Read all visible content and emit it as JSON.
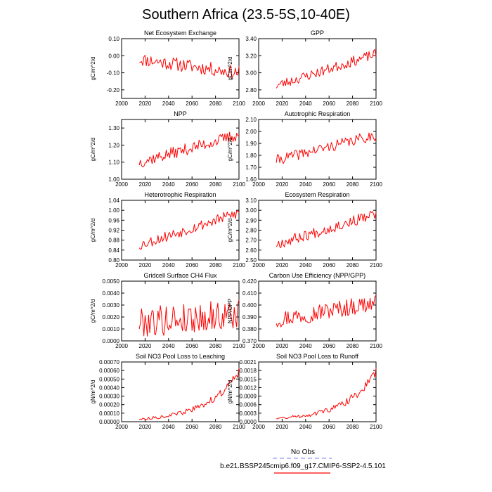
{
  "figure_title": "Southern Africa (23.5-5S,10-40E)",
  "legend": {
    "obs_label": "No Obs",
    "obs_color": "#9999ff",
    "model_label": "b.e21.BSSP245cmip6.f09_g17.CMIP6-SSP2-4.5.101",
    "model_color": "#ff0000"
  },
  "chart_data": [
    {
      "type": "line",
      "title": "Net Ecosystem Exchange",
      "ylabel": "gC/m^2/d",
      "xlim": [
        2000,
        2100
      ],
      "ylim": [
        -0.25,
        0.1
      ],
      "xticks": [
        "2000",
        "2020",
        "2040",
        "2060",
        "2080",
        "2100"
      ],
      "yticks": [
        "0.10",
        "0.00",
        "-0.10",
        "-0.20"
      ],
      "ytick_values": [
        0.1,
        0.0,
        -0.1,
        -0.2
      ],
      "x_start": 2015,
      "x_end": 2100,
      "y_start": -0.02,
      "y_end": -0.1,
      "noise": 0.04,
      "seed": 11,
      "y_min": -0.22,
      "y_max": 0.08
    },
    {
      "type": "line",
      "title": "GPP",
      "ylabel": "gC/m^2/d",
      "xlim": [
        2000,
        2100
      ],
      "ylim": [
        2.7,
        3.4
      ],
      "xticks": [
        "2000",
        "2020",
        "2040",
        "2060",
        "2080",
        "2100"
      ],
      "yticks": [
        "3.40",
        "3.20",
        "3.00",
        "2.80"
      ],
      "ytick_values": [
        3.4,
        3.2,
        3.0,
        2.8
      ],
      "x_start": 2015,
      "x_end": 2100,
      "y_start": 2.85,
      "y_end": 3.22,
      "noise": 0.06,
      "seed": 23,
      "y_min": 2.75,
      "y_max": 3.33
    },
    {
      "type": "line",
      "title": "NPP",
      "ylabel": "gC/m^2/d",
      "xlim": [
        2000,
        2100
      ],
      "ylim": [
        1.0,
        1.35
      ],
      "xticks": [
        "2000",
        "2020",
        "2040",
        "2060",
        "2080",
        "2100"
      ],
      "yticks": [
        "1.30",
        "1.20",
        "1.10",
        "1.00"
      ],
      "ytick_values": [
        1.3,
        1.2,
        1.1,
        1.0
      ],
      "x_start": 2015,
      "x_end": 2100,
      "y_start": 1.1,
      "y_end": 1.26,
      "noise": 0.035,
      "seed": 37,
      "y_min": 1.04,
      "y_max": 1.32
    },
    {
      "type": "line",
      "title": "Autotrophic Respiration",
      "ylabel": "gC/m^2/d",
      "xlim": [
        2000,
        2100
      ],
      "ylim": [
        1.6,
        2.1
      ],
      "xticks": [
        "2000",
        "2020",
        "2040",
        "2060",
        "2080",
        "2100"
      ],
      "yticks": [
        "2.10",
        "2.00",
        "1.90",
        "1.80",
        "1.70",
        "1.60"
      ],
      "ytick_values": [
        2.1,
        2.0,
        1.9,
        1.8,
        1.7,
        1.6
      ],
      "x_start": 2015,
      "x_end": 2100,
      "y_start": 1.76,
      "y_end": 1.97,
      "noise": 0.045,
      "seed": 41,
      "y_min": 1.7,
      "y_max": 2.03
    },
    {
      "type": "line",
      "title": "Heterotrophic Respiration",
      "ylabel": "gC/m^2/d",
      "xlim": [
        2000,
        2100
      ],
      "ylim": [
        0.8,
        1.04
      ],
      "xticks": [
        "2000",
        "2020",
        "2040",
        "2060",
        "2080",
        "2100"
      ],
      "yticks": [
        "1.04",
        "1.00",
        "0.96",
        "0.92",
        "0.88",
        "0.84",
        "0.80"
      ],
      "ytick_values": [
        1.04,
        1.0,
        0.96,
        0.92,
        0.88,
        0.84,
        0.8
      ],
      "x_start": 2015,
      "x_end": 2100,
      "y_start": 0.86,
      "y_end": 0.99,
      "noise": 0.022,
      "seed": 53,
      "y_min": 0.835,
      "y_max": 1.03
    },
    {
      "type": "line",
      "title": "Ecosystem Respiration",
      "ylabel": "gC/m^2/d",
      "xlim": [
        2000,
        2100
      ],
      "ylim": [
        2.5,
        3.1
      ],
      "xticks": [
        "2000",
        "2020",
        "2040",
        "2060",
        "2080",
        "2100"
      ],
      "yticks": [
        "3.10",
        "3.00",
        "2.90",
        "2.80",
        "2.70",
        "2.60",
        "2.50"
      ],
      "ytick_values": [
        3.1,
        3.0,
        2.9,
        2.8,
        2.7,
        2.6,
        2.5
      ],
      "x_start": 2015,
      "x_end": 2100,
      "y_start": 2.66,
      "y_end": 2.96,
      "noise": 0.055,
      "seed": 67,
      "y_min": 2.55,
      "y_max": 3.05
    },
    {
      "type": "line",
      "title": "Gridcell Surface CH4 Flux",
      "ylabel": "gC/m^2/d",
      "xlim": [
        2000,
        2100
      ],
      "ylim": [
        0.0,
        0.005
      ],
      "xticks": [
        "2000",
        "2020",
        "2040",
        "2060",
        "2080",
        "2100"
      ],
      "yticks": [
        "0.0050",
        "0.0040",
        "0.0030",
        "0.0020",
        "0.0010",
        "0.0000"
      ],
      "ytick_values": [
        0.005,
        0.004,
        0.003,
        0.002,
        0.001,
        0.0
      ],
      "x_start": 2015,
      "x_end": 2100,
      "y_start": 0.0016,
      "y_end": 0.0022,
      "noise": 0.0013,
      "seed": 79,
      "y_min": 0.0003,
      "y_max": 0.0049
    },
    {
      "type": "line",
      "title": "Carbon Use Efficiency (NPP/GPP)",
      "ylabel": "NPP/GPP",
      "xlim": [
        2000,
        2100
      ],
      "ylim": [
        0.37,
        0.42
      ],
      "xticks": [
        "2000",
        "2020",
        "2040",
        "2060",
        "2080",
        "2100"
      ],
      "yticks": [
        "0.420",
        "0.410",
        "0.400",
        "0.390",
        "0.380",
        "0.370"
      ],
      "ytick_values": [
        0.42,
        0.41,
        0.4,
        0.39,
        0.38,
        0.37
      ],
      "x_start": 2015,
      "x_end": 2100,
      "y_start": 0.388,
      "y_end": 0.402,
      "noise": 0.0075,
      "seed": 97,
      "y_min": 0.374,
      "y_max": 0.418
    },
    {
      "type": "line",
      "title": "Soil NO3 Pool Loss to Leaching",
      "ylabel": "gN/m^2/d",
      "xlim": [
        2000,
        2100
      ],
      "ylim": [
        0.0,
        0.0007
      ],
      "xticks": [
        "2000",
        "2020",
        "2040",
        "2060",
        "2080",
        "2100"
      ],
      "yticks": [
        "0.00070",
        "0.00060",
        "0.00050",
        "0.00040",
        "0.00030",
        "0.00020",
        "0.00010",
        "0.00000"
      ],
      "ytick_values": [
        0.0007,
        0.0006,
        0.0005,
        0.0004,
        0.0003,
        0.0002,
        0.0001,
        0.0
      ],
      "x_start": 2015,
      "x_end": 2100,
      "y_start": 3e-05,
      "y_end": 0.00058,
      "noise": 2.5e-05,
      "seed": 113,
      "growth": 3.0,
      "y_min": 2e-05,
      "y_max": 0.00063
    },
    {
      "type": "line",
      "title": "Soil NO3 Pool Loss to Runoff",
      "ylabel": "gN/m^2/d",
      "xlim": [
        2000,
        2100
      ],
      "ylim": [
        0.0,
        0.0021
      ],
      "xticks": [
        "2000",
        "2020",
        "2040",
        "2060",
        "2080",
        "2100"
      ],
      "yticks": [
        "0.0021",
        "0.0018",
        "0.0015",
        "0.0012",
        "0.0009",
        "0.0006",
        "0.0003",
        "0.0000"
      ],
      "ytick_values": [
        0.0021,
        0.0018,
        0.0015,
        0.0012,
        0.0009,
        0.0006,
        0.0003,
        0.0
      ],
      "x_start": 2015,
      "x_end": 2100,
      "y_start": 0.00012,
      "y_end": 0.00175,
      "noise": 8e-05,
      "seed": 131,
      "growth": 3.2,
      "y_min": 0.0001,
      "y_max": 0.0019
    }
  ]
}
